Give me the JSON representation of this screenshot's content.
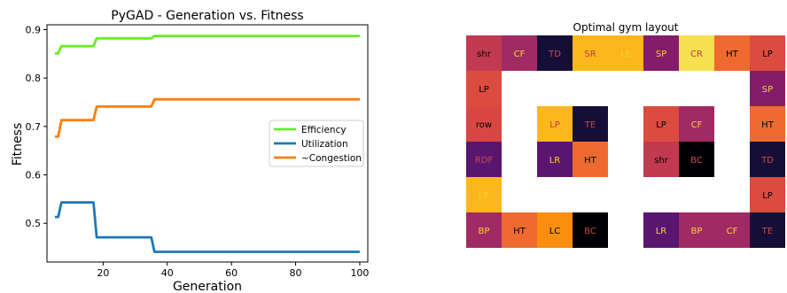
{
  "chart_data": [
    {
      "type": "line",
      "title": "PyGAD - Generation vs. Fitness",
      "xlabel": "Generation",
      "ylabel": "Fitness",
      "xlim": [
        2.5,
        102.5
      ],
      "ylim": [
        0.42,
        0.91
      ],
      "xticks": [
        20,
        40,
        60,
        80,
        100
      ],
      "yticks": [
        0.5,
        0.6,
        0.7,
        0.8,
        0.9
      ],
      "legend_position": "center-right",
      "series": [
        {
          "name": "Efficiency",
          "color": "#66ee22",
          "points": [
            [
              5,
              0.851
            ],
            [
              6,
              0.851
            ],
            [
              7,
              0.866
            ],
            [
              17,
              0.866
            ],
            [
              18,
              0.882
            ],
            [
              35,
              0.882
            ],
            [
              36,
              0.887
            ],
            [
              100,
              0.887
            ]
          ]
        },
        {
          "name": "Utilization",
          "color": "#1f77b4",
          "points": [
            [
              5,
              0.513
            ],
            [
              6,
              0.513
            ],
            [
              7,
              0.543
            ],
            [
              17,
              0.543
            ],
            [
              18,
              0.471
            ],
            [
              35,
              0.471
            ],
            [
              36,
              0.441
            ],
            [
              100,
              0.441
            ]
          ]
        },
        {
          "name": "~Congestion",
          "color": "#ff7f0e",
          "points": [
            [
              5,
              0.679
            ],
            [
              6,
              0.679
            ],
            [
              7,
              0.713
            ],
            [
              17,
              0.713
            ],
            [
              18,
              0.741
            ],
            [
              35,
              0.741
            ],
            [
              36,
              0.756
            ],
            [
              100,
              0.756
            ]
          ]
        }
      ]
    },
    {
      "type": "heatmap",
      "title": "Optimal gym layout",
      "rows": 6,
      "cols": 9,
      "cells": [
        {
          "r": 0,
          "c": 0,
          "label": "shr",
          "bg": "#c13a50",
          "fg": "#000000"
        },
        {
          "r": 0,
          "c": 1,
          "label": "CF",
          "bg": "#a02a63",
          "fg": "#f5d13f"
        },
        {
          "r": 0,
          "c": 2,
          "label": "TD",
          "bg": "#150e37",
          "fg": "#c94a4a"
        },
        {
          "r": 0,
          "c": 3,
          "label": "SR",
          "bg": "#fbb71b",
          "fg": "#c13a50"
        },
        {
          "r": 0,
          "c": 4,
          "label": "LE",
          "bg": "#fbb71b",
          "fg": "#f5d13f"
        },
        {
          "r": 0,
          "c": 5,
          "label": "SP",
          "bg": "#851c6a",
          "fg": "#f5d13f"
        },
        {
          "r": 0,
          "c": 6,
          "label": "CR",
          "bg": "#f7e050",
          "fg": "#c13a50"
        },
        {
          "r": 0,
          "c": 7,
          "label": "HT",
          "bg": "#ef6a30",
          "fg": "#000000"
        },
        {
          "r": 0,
          "c": 8,
          "label": "LP",
          "bg": "#dc4b40",
          "fg": "#000000"
        },
        {
          "r": 1,
          "c": 0,
          "label": "LP",
          "bg": "#dc4b40",
          "fg": "#000000"
        },
        {
          "r": 1,
          "c": 8,
          "label": "SP",
          "bg": "#851c6a",
          "fg": "#f5d13f"
        },
        {
          "r": 2,
          "c": 0,
          "label": "row",
          "bg": "#d84742",
          "fg": "#000000"
        },
        {
          "r": 2,
          "c": 2,
          "label": "LP",
          "bg": "#fbb71b",
          "fg": "#c13a50"
        },
        {
          "r": 2,
          "c": 3,
          "label": "TE",
          "bg": "#150e37",
          "fg": "#c94a4a"
        },
        {
          "r": 2,
          "c": 5,
          "label": "LP",
          "bg": "#dc4b40",
          "fg": "#000000"
        },
        {
          "r": 2,
          "c": 6,
          "label": "CF",
          "bg": "#a02a63",
          "fg": "#f5d13f"
        },
        {
          "r": 2,
          "c": 8,
          "label": "HT",
          "bg": "#ef6a30",
          "fg": "#000000"
        },
        {
          "r": 3,
          "c": 0,
          "label": "RDF",
          "bg": "#5a1570",
          "fg": "#c94a4a"
        },
        {
          "r": 3,
          "c": 2,
          "label": "LR",
          "bg": "#5a1570",
          "fg": "#f5d13f"
        },
        {
          "r": 3,
          "c": 3,
          "label": "HT",
          "bg": "#ef6a30",
          "fg": "#000000"
        },
        {
          "r": 3,
          "c": 5,
          "label": "shr",
          "bg": "#c13a50",
          "fg": "#000000"
        },
        {
          "r": 3,
          "c": 6,
          "label": "BC",
          "bg": "#000004",
          "fg": "#c94a4a"
        },
        {
          "r": 3,
          "c": 8,
          "label": "TD",
          "bg": "#150e37",
          "fg": "#c94a4a"
        },
        {
          "r": 4,
          "c": 0,
          "label": "LE",
          "bg": "#fbb71b",
          "fg": "#f5d13f"
        },
        {
          "r": 4,
          "c": 8,
          "label": "LP",
          "bg": "#dc4b40",
          "fg": "#000000"
        },
        {
          "r": 5,
          "c": 0,
          "label": "BP",
          "bg": "#a02a63",
          "fg": "#f5d13f"
        },
        {
          "r": 5,
          "c": 1,
          "label": "HT",
          "bg": "#ef6a30",
          "fg": "#000000"
        },
        {
          "r": 5,
          "c": 2,
          "label": "LC",
          "bg": "#f98e0f",
          "fg": "#000000"
        },
        {
          "r": 5,
          "c": 3,
          "label": "BC",
          "bg": "#000004",
          "fg": "#c94a4a"
        },
        {
          "r": 5,
          "c": 5,
          "label": "LR",
          "bg": "#5a1570",
          "fg": "#f5d13f"
        },
        {
          "r": 5,
          "c": 6,
          "label": "BP",
          "bg": "#a02a63",
          "fg": "#f5d13f"
        },
        {
          "r": 5,
          "c": 7,
          "label": "CF",
          "bg": "#a02a63",
          "fg": "#f5d13f"
        },
        {
          "r": 5,
          "c": 8,
          "label": "TE",
          "bg": "#150e37",
          "fg": "#c94a4a"
        }
      ]
    }
  ]
}
